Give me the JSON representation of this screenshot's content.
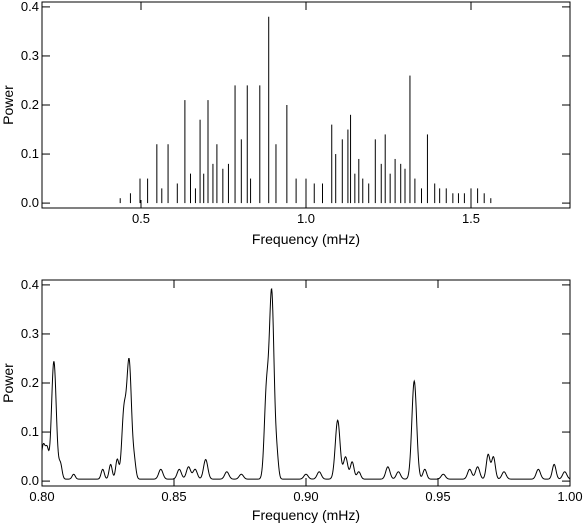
{
  "chart_data": [
    {
      "type": "line",
      "xlabel": "Frequency (mHz)",
      "ylabel": "Power",
      "xlim": [
        0.2,
        1.8
      ],
      "ylim": [
        -0.01,
        0.41
      ],
      "x_ticks": [
        0.5,
        1.0,
        1.5
      ],
      "x_tick_labels": [
        "0.5",
        "1.0",
        "1.5"
      ],
      "y_ticks": [
        0.0,
        0.1,
        0.2,
        0.3,
        0.4
      ],
      "y_tick_labels": [
        "0.0",
        "0.1",
        "0.2",
        "0.3",
        "0.4"
      ],
      "grid": false,
      "style": "stem",
      "series": [
        {
          "x": [
            0.437,
            0.468,
            0.497,
            0.52,
            0.548,
            0.563,
            0.582,
            0.61,
            0.633,
            0.65,
            0.665,
            0.679,
            0.69,
            0.703,
            0.718,
            0.73,
            0.748,
            0.765,
            0.785,
            0.804,
            0.822,
            0.832,
            0.86,
            0.887,
            0.909,
            0.942,
            0.97,
            1.0,
            1.025,
            1.05,
            1.078,
            1.09,
            1.11,
            1.127,
            1.135,
            1.148,
            1.16,
            1.172,
            1.19,
            1.21,
            1.228,
            1.24,
            1.255,
            1.27,
            1.287,
            1.3,
            1.315,
            1.33,
            1.35,
            1.368,
            1.39,
            1.405,
            1.425,
            1.445,
            1.462,
            1.48,
            1.5,
            1.52,
            1.54,
            1.56
          ],
          "values": [
            0.01,
            0.02,
            0.05,
            0.05,
            0.12,
            0.03,
            0.12,
            0.04,
            0.21,
            0.06,
            0.03,
            0.17,
            0.06,
            0.21,
            0.08,
            0.12,
            0.07,
            0.08,
            0.24,
            0.13,
            0.24,
            0.05,
            0.24,
            0.38,
            0.12,
            0.2,
            0.05,
            0.05,
            0.04,
            0.04,
            0.16,
            0.1,
            0.13,
            0.15,
            0.18,
            0.06,
            0.09,
            0.05,
            0.04,
            0.13,
            0.08,
            0.14,
            0.06,
            0.09,
            0.08,
            0.07,
            0.26,
            0.05,
            0.03,
            0.14,
            0.04,
            0.03,
            0.03,
            0.02,
            0.02,
            0.02,
            0.03,
            0.03,
            0.02,
            0.01
          ]
        }
      ]
    },
    {
      "type": "line",
      "xlabel": "Frequency (mHz)",
      "ylabel": "Power",
      "xlim": [
        0.8,
        1.0
      ],
      "ylim": [
        -0.01,
        0.41
      ],
      "x_ticks": [
        0.8,
        0.85,
        0.9,
        0.95,
        1.0
      ],
      "x_tick_labels": [
        "0.80",
        "0.85",
        "0.90",
        "0.95",
        "1.00"
      ],
      "y_ticks": [
        0.0,
        0.1,
        0.2,
        0.3,
        0.4
      ],
      "y_tick_labels": [
        "0.0",
        "0.1",
        "0.2",
        "0.3",
        "0.4"
      ],
      "grid": false,
      "baseline": 0.004,
      "series": [
        {
          "peaks": [
            {
              "x": 0.8005,
              "y": 0.07,
              "w": 0.0008
            },
            {
              "x": 0.802,
              "y": 0.05,
              "w": 0.0006
            },
            {
              "x": 0.8045,
              "y": 0.24,
              "w": 0.0009
            },
            {
              "x": 0.807,
              "y": 0.03,
              "w": 0.0006
            },
            {
              "x": 0.812,
              "y": 0.01,
              "w": 0.0006
            },
            {
              "x": 0.823,
              "y": 0.02,
              "w": 0.0006
            },
            {
              "x": 0.826,
              "y": 0.03,
              "w": 0.0006
            },
            {
              "x": 0.8285,
              "y": 0.04,
              "w": 0.0006
            },
            {
              "x": 0.831,
              "y": 0.13,
              "w": 0.0008
            },
            {
              "x": 0.833,
              "y": 0.24,
              "w": 0.0009
            },
            {
              "x": 0.835,
              "y": 0.03,
              "w": 0.0006
            },
            {
              "x": 0.845,
              "y": 0.02,
              "w": 0.0008
            },
            {
              "x": 0.852,
              "y": 0.02,
              "w": 0.0008
            },
            {
              "x": 0.8555,
              "y": 0.025,
              "w": 0.0008
            },
            {
              "x": 0.858,
              "y": 0.02,
              "w": 0.0008
            },
            {
              "x": 0.862,
              "y": 0.04,
              "w": 0.0008
            },
            {
              "x": 0.87,
              "y": 0.015,
              "w": 0.0008
            },
            {
              "x": 0.8755,
              "y": 0.01,
              "w": 0.0008
            },
            {
              "x": 0.885,
              "y": 0.17,
              "w": 0.0008
            },
            {
              "x": 0.887,
              "y": 0.38,
              "w": 0.0009
            },
            {
              "x": 0.889,
              "y": 0.04,
              "w": 0.0006
            },
            {
              "x": 0.9,
              "y": 0.01,
              "w": 0.0008
            },
            {
              "x": 0.905,
              "y": 0.015,
              "w": 0.0008
            },
            {
              "x": 0.912,
              "y": 0.12,
              "w": 0.0009
            },
            {
              "x": 0.915,
              "y": 0.045,
              "w": 0.0008
            },
            {
              "x": 0.9175,
              "y": 0.035,
              "w": 0.0007
            },
            {
              "x": 0.92,
              "y": 0.015,
              "w": 0.0007
            },
            {
              "x": 0.931,
              "y": 0.025,
              "w": 0.0008
            },
            {
              "x": 0.935,
              "y": 0.015,
              "w": 0.0008
            },
            {
              "x": 0.941,
              "y": 0.2,
              "w": 0.0009
            },
            {
              "x": 0.945,
              "y": 0.02,
              "w": 0.0007
            },
            {
              "x": 0.952,
              "y": 0.01,
              "w": 0.0008
            },
            {
              "x": 0.962,
              "y": 0.02,
              "w": 0.0008
            },
            {
              "x": 0.965,
              "y": 0.025,
              "w": 0.0008
            },
            {
              "x": 0.969,
              "y": 0.05,
              "w": 0.0007
            },
            {
              "x": 0.971,
              "y": 0.045,
              "w": 0.0007
            },
            {
              "x": 0.975,
              "y": 0.015,
              "w": 0.0008
            },
            {
              "x": 0.988,
              "y": 0.02,
              "w": 0.0008
            },
            {
              "x": 0.994,
              "y": 0.03,
              "w": 0.0007
            },
            {
              "x": 0.998,
              "y": 0.015,
              "w": 0.0008
            }
          ]
        }
      ]
    }
  ]
}
